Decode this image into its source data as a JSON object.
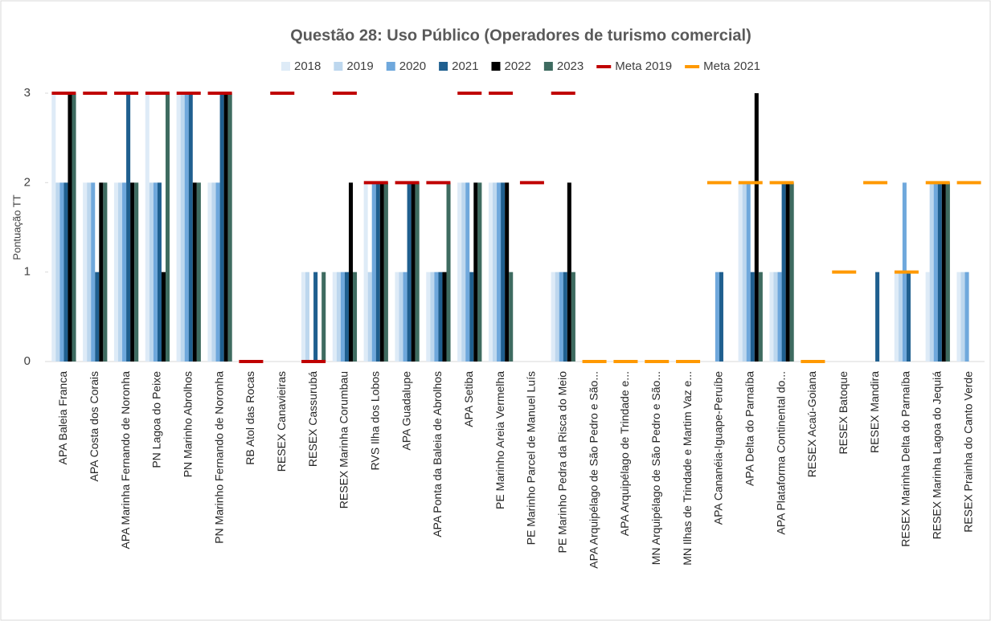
{
  "chart_data": {
    "type": "bar",
    "title": "Questão 28: Uso Público (Operadores de turismo comercial)",
    "y_label": "Pontuação TT",
    "categories": [
      "APA Baleia Franca",
      "APA Costa dos Corais",
      "APA Marinha Fernando de Noronha",
      "PN Lagoa do Peixe",
      "PN Marinho Abrolhos",
      "PN Marinho Fernando de Noronha",
      "RB Atol das Rocas",
      "RESEX Canavieiras",
      "RESEX Cassurubá",
      "RESEX Marinha Corumbau",
      "RVS Ilha dos Lobos",
      "APA Guadalupe",
      "APA Ponta da Baleia de Abrolhos",
      "APA Setiba",
      "PE Marinho Areia Vermelha",
      "PE Marinho Parcel de Manuel Luís",
      "PE Marinho Pedra da Risca do Meio",
      "APA Arquipélago de São Pedro e São...",
      "APA Arquipélago de Trindade e...",
      "MN Arquipélago de São Pedro e São...",
      "MN Ilhas de Trindade e Martim Vaz e...",
      "APA Cananéia-Iguape-Peruíbe",
      "APA Delta do Parnaíba",
      "APA Plataforma Continental do...",
      "RESEX Acaú-Goiana",
      "RESEX Batoque",
      "RESEX Mandira",
      "RESEX Marinha Delta do Parnaíba",
      "RESEX Marinha Lagoa do Jequiá",
      "RESEX Prainha do Canto Verde"
    ],
    "series": [
      {
        "name": "2018",
        "color": "#deebf7",
        "values": [
          3,
          2,
          2,
          3,
          3,
          2,
          null,
          null,
          1,
          1,
          2,
          1,
          1,
          2,
          2,
          null,
          1,
          null,
          null,
          null,
          null,
          null,
          2,
          1,
          null,
          null,
          null,
          1,
          1,
          1
        ]
      },
      {
        "name": "2019",
        "color": "#bdd7ee",
        "values": [
          2,
          2,
          2,
          2,
          3,
          2,
          null,
          null,
          1,
          1,
          1,
          1,
          1,
          2,
          2,
          null,
          1,
          null,
          null,
          null,
          null,
          null,
          2,
          1,
          null,
          null,
          null,
          1,
          2,
          1
        ]
      },
      {
        "name": "2020",
        "color": "#6fa8dc",
        "values": [
          2,
          2,
          2,
          2,
          3,
          2,
          null,
          null,
          null,
          1,
          2,
          1,
          1,
          2,
          2,
          null,
          1,
          null,
          null,
          null,
          null,
          1,
          2,
          1,
          null,
          null,
          null,
          2,
          2,
          1
        ]
      },
      {
        "name": "2021",
        "color": "#1f5f8f",
        "values": [
          2,
          1,
          3,
          2,
          3,
          3,
          null,
          null,
          1,
          1,
          2,
          2,
          1,
          1,
          2,
          null,
          1,
          null,
          null,
          null,
          null,
          1,
          1,
          2,
          null,
          null,
          1,
          1,
          2,
          null
        ]
      },
      {
        "name": "2022",
        "color": "#000000",
        "values": [
          3,
          2,
          2,
          1,
          2,
          3,
          null,
          null,
          null,
          2,
          2,
          2,
          1,
          2,
          2,
          null,
          2,
          null,
          null,
          null,
          null,
          null,
          3,
          2,
          null,
          null,
          null,
          null,
          2,
          null
        ]
      },
      {
        "name": "2023",
        "color": "#3e6b60",
        "values": [
          3,
          2,
          2,
          3,
          2,
          3,
          null,
          null,
          1,
          1,
          2,
          2,
          2,
          2,
          1,
          null,
          1,
          null,
          null,
          null,
          null,
          null,
          1,
          2,
          null,
          null,
          null,
          null,
          2,
          null
        ]
      },
      {
        "name": "Meta 2019",
        "color": "#c00000",
        "marker": "dash",
        "values": [
          3,
          3,
          3,
          3,
          3,
          3,
          0,
          3,
          0,
          3,
          2,
          2,
          2,
          3,
          3,
          2,
          3,
          null,
          null,
          null,
          null,
          null,
          null,
          null,
          null,
          null,
          null,
          null,
          null,
          null
        ]
      },
      {
        "name": "Meta 2021",
        "color": "#ff9900",
        "marker": "dash",
        "values": [
          null,
          null,
          null,
          null,
          null,
          null,
          null,
          null,
          null,
          null,
          null,
          null,
          null,
          null,
          null,
          null,
          null,
          0,
          0,
          0,
          0,
          2,
          2,
          2,
          0,
          1,
          2,
          1,
          2,
          2
        ]
      }
    ],
    "ylim": [
      0,
      3
    ],
    "yticks": [
      0,
      1,
      2,
      3
    ]
  }
}
